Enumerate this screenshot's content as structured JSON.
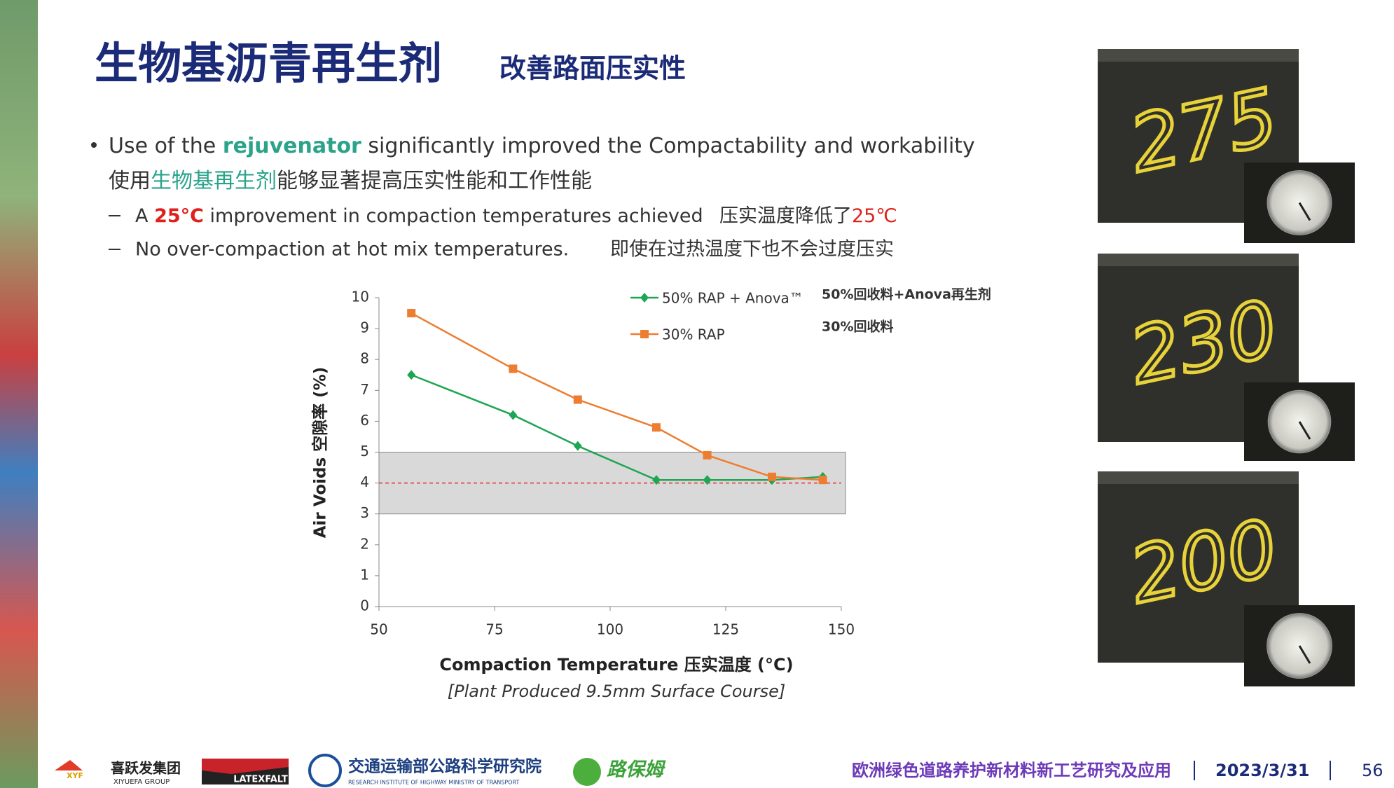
{
  "slide": {
    "title": "生物基沥青再生剂",
    "subtitle": "改善路面压实性",
    "bullet1": [
      "Use of the ",
      "rejuvenator",
      " significantly improved the Compactability and workability"
    ],
    "bullet1_cn": [
      "使用",
      "生物基再生剂",
      "能够显著提高压实性能和工作性能"
    ],
    "sub1": [
      "A ",
      "25°C",
      " improvement in compaction temperatures achieved"
    ],
    "sub1_cn": [
      "压实温度降低了",
      "25℃"
    ],
    "sub2": "No over-compaction at hot mix temperatures.",
    "sub2_cn": "即使在过热温度下也不会过度压实",
    "photos": [
      "275",
      "230",
      "200"
    ],
    "logos": [
      "喜跃发集团",
      "XIYUEFA GROUP",
      "LATEXFALT",
      "交通运输部公路科学研究院",
      "RESEARCH INSTITUTE OF HIGHWAY MINISTRY OF TRANSPORT",
      "路保姆"
    ],
    "footer": "欧洲绿色道路养护新材料新工艺研究及应用",
    "date": "2023/3/31",
    "page": "56"
  },
  "chart_data": {
    "type": "line",
    "x_label": "Compaction Temperature 压实温度 (°C)",
    "y_label": "Air Voids 空隙率 (%)",
    "caption": "[Plant Produced 9.5mm Surface Course]",
    "x": [
      57,
      79,
      93,
      110,
      121,
      135,
      146
    ],
    "series": [
      {
        "name": "50% RAP + Anova™",
        "note": "50%回收料+Anova再生剂",
        "color": "#1fa653",
        "marker": "diamond",
        "values": [
          7.5,
          6.2,
          5.2,
          4.1,
          4.1,
          4.1,
          4.2
        ]
      },
      {
        "name": "30% RAP",
        "note": "30%回收料",
        "color": "#ed7d31",
        "marker": "square",
        "values": [
          9.5,
          7.7,
          6.7,
          5.8,
          4.9,
          4.2,
          4.1
        ]
      }
    ],
    "xlim": [
      50,
      150
    ],
    "xticks": [
      50,
      75,
      100,
      125,
      150
    ],
    "ylim": [
      0,
      10
    ],
    "yticks": [
      0,
      1,
      2,
      3,
      4,
      5,
      6,
      7,
      8,
      9,
      10
    ],
    "shaded_range": [
      3,
      5
    ],
    "reference_y": 4
  }
}
